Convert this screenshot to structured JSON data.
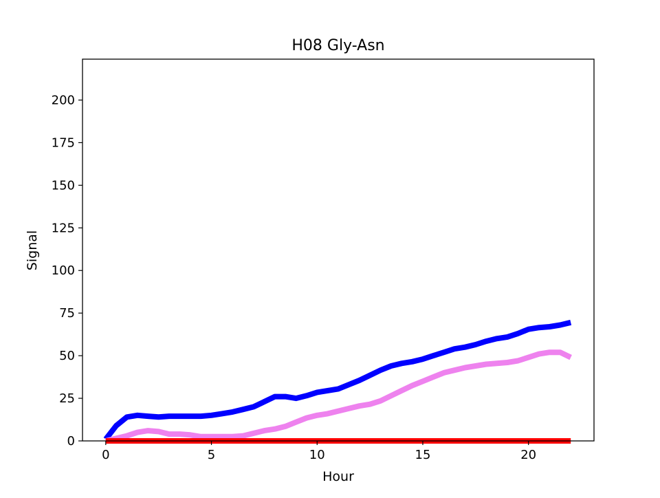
{
  "chart_data": {
    "type": "line",
    "title": "H08 Gly-Asn",
    "xlabel": "Hour",
    "ylabel": "Signal",
    "xlim": [
      -1.1,
      23.1
    ],
    "ylim": [
      0,
      224
    ],
    "x_ticks": [
      0,
      5,
      10,
      15,
      20
    ],
    "y_ticks": [
      0,
      25,
      50,
      75,
      100,
      125,
      150,
      175,
      200
    ],
    "grid": false,
    "legend": "none",
    "series": [
      {
        "color": "#0000ff",
        "x": [
          0,
          0.5,
          1,
          1.5,
          2,
          2.5,
          3,
          3.5,
          4,
          4.5,
          5,
          5.5,
          6,
          6.5,
          7,
          7.5,
          8,
          8.5,
          9,
          9.5,
          10,
          10.5,
          11,
          11.5,
          12,
          12.5,
          13,
          13.5,
          14,
          14.5,
          15,
          15.5,
          16,
          16.5,
          17,
          17.5,
          18,
          18.5,
          19,
          19.5,
          20,
          20.5,
          21,
          21.5,
          22
        ],
        "y": [
          1,
          9,
          14,
          15,
          14.5,
          14,
          14.5,
          14.5,
          14.5,
          14.5,
          15,
          16,
          17,
          18.5,
          20,
          23,
          26,
          26,
          25,
          26.5,
          28.5,
          29.5,
          30.5,
          33,
          35.5,
          38.5,
          41.5,
          44,
          45.5,
          46.5,
          48,
          50,
          52,
          54,
          55,
          56.5,
          58.5,
          60,
          61,
          63,
          65.5,
          66.5,
          67,
          68,
          69.5
        ]
      },
      {
        "color": "#ee82ee",
        "x": [
          0,
          0.5,
          1,
          1.5,
          2,
          2.5,
          3,
          3.5,
          4,
          4.5,
          5,
          5.5,
          6,
          6.5,
          7,
          7.5,
          8,
          8.5,
          9,
          9.5,
          10,
          10.5,
          11,
          11.5,
          12,
          12.5,
          13,
          13.5,
          14,
          14.5,
          15,
          15.5,
          16,
          16.5,
          17,
          17.5,
          18,
          18.5,
          19,
          19.5,
          20,
          20.5,
          21,
          21.5,
          22
        ],
        "y": [
          0,
          1.5,
          3,
          5,
          6,
          5.5,
          4,
          4,
          3.5,
          2.5,
          2.5,
          2.5,
          2.5,
          3,
          4.5,
          6,
          7,
          8.5,
          11,
          13.5,
          15,
          16,
          17.5,
          19,
          20.5,
          21.5,
          23.5,
          26.5,
          29.5,
          32.5,
          35,
          37.5,
          40,
          41.5,
          43,
          44,
          45,
          45.5,
          46,
          47,
          49,
          51,
          52,
          52,
          49
        ]
      },
      {
        "color": "#ff0000",
        "x": [
          0,
          1,
          2,
          3,
          4,
          5,
          6,
          7,
          8,
          9,
          10,
          11,
          12,
          13,
          14,
          15,
          16,
          17,
          18,
          19,
          20,
          21,
          22
        ],
        "y": [
          0,
          0,
          0,
          0,
          0,
          0,
          0,
          0,
          0,
          0,
          0,
          0,
          0,
          0,
          0,
          0,
          0,
          0,
          0,
          0,
          0,
          0,
          0
        ]
      }
    ]
  }
}
